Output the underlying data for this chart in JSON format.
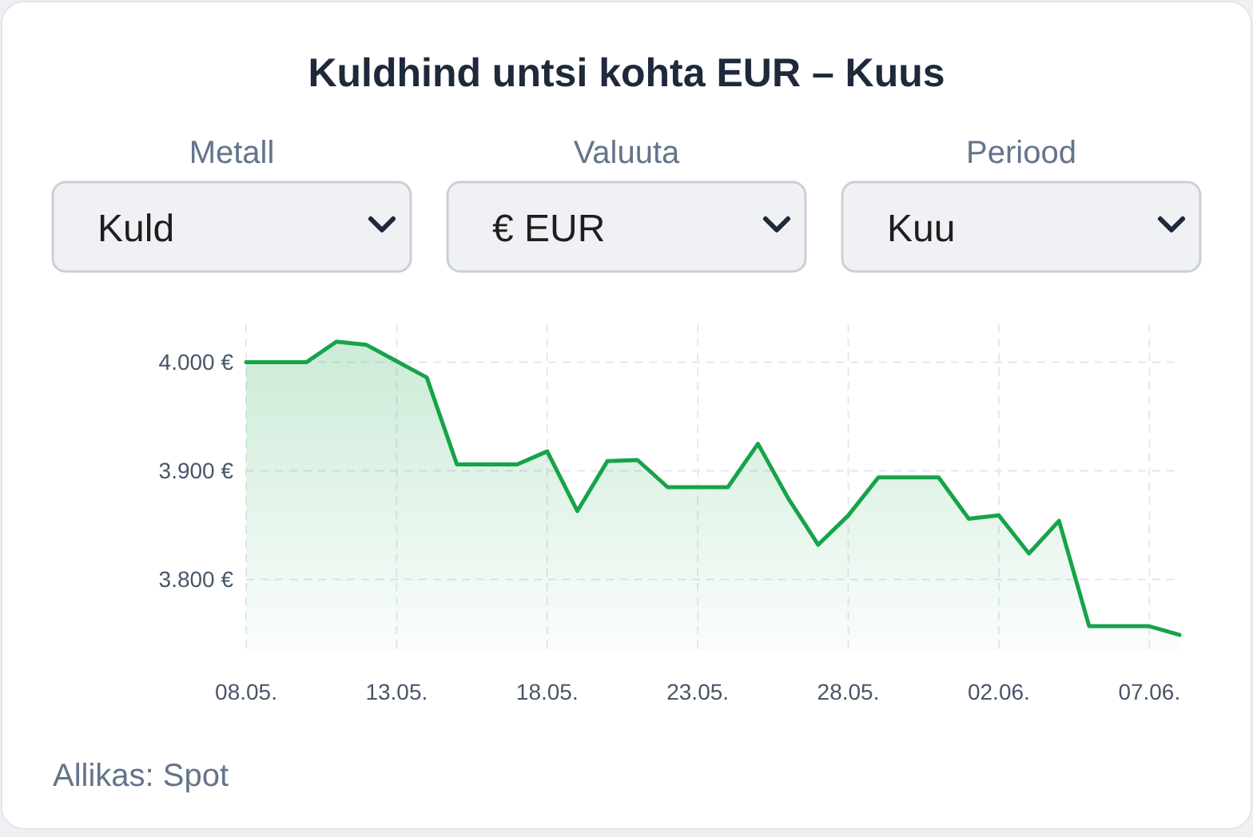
{
  "chart_data": {
    "type": "area",
    "title": "Kuldhind untsi kohta EUR – Kuus",
    "x": [
      "--05-08",
      "--05-09",
      "--05-10",
      "--05-11",
      "--05-12",
      "--05-13",
      "--05-14",
      "--05-15",
      "--05-16",
      "--05-17",
      "--05-18",
      "--05-19",
      "--05-20",
      "--05-21",
      "--05-22",
      "--05-23",
      "--05-24",
      "--05-25",
      "--05-26",
      "--05-27",
      "--05-28",
      "--05-29",
      "--05-30",
      "--05-31",
      "--06-01",
      "--06-02",
      "--06-03",
      "--06-04",
      "--06-05",
      "--06-06",
      "--06-07",
      "--06-08"
    ],
    "series": [
      {
        "color": "#16a34a",
        "values": [
          4000,
          4000,
          4000,
          4019,
          4016,
          4001,
          3986,
          3906,
          3906,
          3906,
          3918,
          3863,
          3909,
          3910,
          3885,
          3885,
          3885,
          3925,
          3875,
          3832,
          3859,
          3894,
          3894,
          3894,
          3856,
          3859,
          3824,
          3854,
          3757,
          3757,
          3757,
          3749
        ]
      }
    ],
    "xlim": [
      "--05-08",
      "--06-08"
    ],
    "xticks": [
      {
        "value": "--05-08",
        "label": "08.05."
      },
      {
        "value": "--05-13",
        "label": "13.05."
      },
      {
        "value": "--05-18",
        "label": "18.05."
      },
      {
        "value": "--05-23",
        "label": "23.05."
      },
      {
        "value": "--05-28",
        "label": "28.05."
      },
      {
        "value": "--06-02",
        "label": "02.06."
      },
      {
        "value": "--06-07",
        "label": "07.06."
      }
    ],
    "ylim": [
      3735,
      4035
    ],
    "yticks": [
      {
        "value": 3800,
        "label": "3.800 €"
      },
      {
        "value": 3900,
        "label": "3.900 €"
      },
      {
        "value": 4000,
        "label": "4.000 €"
      }
    ],
    "grid": true,
    "marker": "none",
    "line_style": "solid",
    "annotations": [
      "Metall",
      "Kuld",
      "Valuuta",
      "€ EUR",
      "Periood",
      "Kuu",
      "Allikas: Spot"
    ]
  }
}
